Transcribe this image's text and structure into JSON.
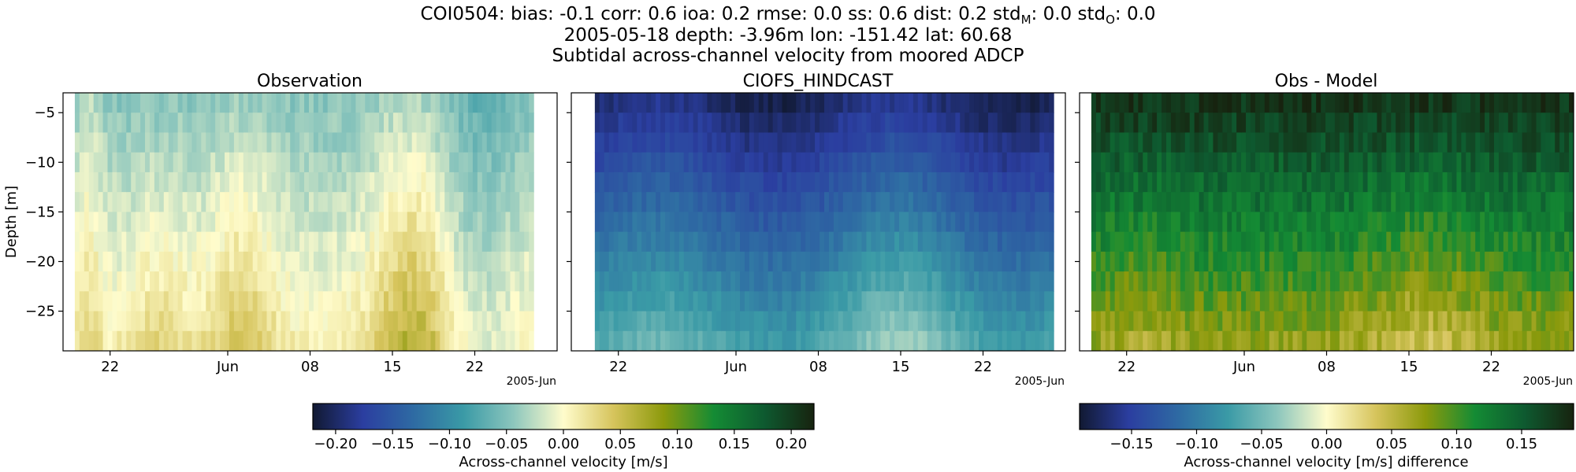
{
  "figure": {
    "title_lines": [
      "COI0504: bias: -0.1  corr: 0.6  ioa: 0.2  rmse: 0.0  ss: 0.6  dist: 0.2  std",
      "2005-05-18 depth: -3.96m lon: -151.42 lat: 60.68",
      "Subtidal across-channel velocity from moored ADCP"
    ],
    "title_tail": {
      "std_m_sub": "M",
      "std_m_val": ": 0.0  std",
      "std_o_sub": "O",
      "std_o_val": ": 0.0"
    }
  },
  "chart_data": [
    {
      "type": "heatmap",
      "title": "Observation",
      "ylabel": "Depth [m]",
      "xlabel": "",
      "x_ticks": [
        "22",
        "Jun",
        "08",
        "15",
        "22"
      ],
      "x_offset_label": "2005-Jun",
      "x_range": [
        "2005-05-18",
        "2005-06-29"
      ],
      "data_x_range": [
        "2005-05-19",
        "2005-06-27"
      ],
      "y_ticks": [
        -5,
        -10,
        -15,
        -20,
        -25
      ],
      "ylim": [
        -29,
        -3
      ],
      "colormap": "delta",
      "clim": [
        -0.22,
        0.22
      ]
    },
    {
      "type": "heatmap",
      "title": "CIOFS_HINDCAST",
      "xlabel": "",
      "x_ticks": [
        "22",
        "Jun",
        "08",
        "15",
        "22"
      ],
      "x_offset_label": "2005-Jun",
      "x_range": [
        "2005-05-18",
        "2005-06-29"
      ],
      "data_x_range": [
        "2005-05-20",
        "2005-06-28"
      ],
      "y_ticks": [
        -5,
        -10,
        -15,
        -20,
        -25
      ],
      "ylim": [
        -29,
        -3
      ],
      "colormap": "delta",
      "clim": [
        -0.22,
        0.22
      ]
    },
    {
      "type": "heatmap",
      "title": "Obs - Model",
      "xlabel": "",
      "x_ticks": [
        "22",
        "Jun",
        "08",
        "15",
        "22"
      ],
      "x_offset_label": "2005-Jun",
      "x_range": [
        "2005-05-18",
        "2005-06-29"
      ],
      "data_x_range": [
        "2005-05-19",
        "2005-06-29"
      ],
      "y_ticks": [
        -5,
        -10,
        -15,
        -20,
        -25
      ],
      "ylim": [
        -29,
        -3
      ],
      "colormap": "delta",
      "clim": [
        -0.19,
        0.19
      ]
    }
  ],
  "colorbars": [
    {
      "label": "Across-channel velocity [m/s]",
      "ticks": [
        "−0.20",
        "−0.15",
        "−0.10",
        "−0.05",
        "0.00",
        "0.05",
        "0.10",
        "0.15",
        "0.20"
      ],
      "tick_values": [
        -0.2,
        -0.15,
        -0.1,
        -0.05,
        0.0,
        0.05,
        0.1,
        0.15,
        0.2
      ],
      "range": [
        -0.22,
        0.22
      ]
    },
    {
      "label": "Across-channel velocity [m/s] difference",
      "ticks": [
        "−0.15",
        "−0.10",
        "−0.05",
        "0.00",
        "0.05",
        "0.10",
        "0.15"
      ],
      "tick_values": [
        -0.15,
        -0.1,
        -0.05,
        0.0,
        0.05,
        0.1,
        0.15
      ],
      "range": [
        -0.19,
        0.19
      ]
    }
  ],
  "colors": {
    "delta_stops": [
      "#111932",
      "#2b3ea0",
      "#2e6aa3",
      "#3a9aa6",
      "#8cc6bd",
      "#fffccc",
      "#d6c45c",
      "#8c9a0c",
      "#148b34",
      "#0e5a30",
      "#17230f"
    ]
  }
}
